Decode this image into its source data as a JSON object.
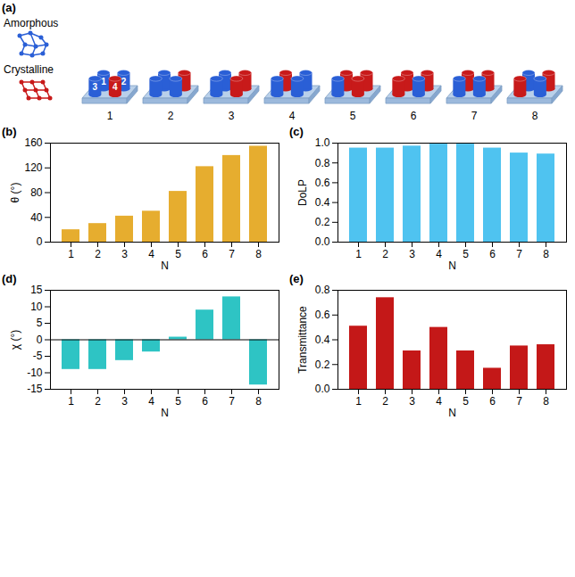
{
  "diagram": {
    "title": "(a)",
    "legend": [
      {
        "label": "Amorphous",
        "color": "#2a5fd6"
      },
      {
        "label": "Crystalline",
        "color": "#c81a1a"
      }
    ],
    "units": [
      {
        "label": "1",
        "crystalline": [
          4
        ],
        "pillar_labels": [
          "1",
          "2",
          "3",
          "4"
        ]
      },
      {
        "label": "2",
        "crystalline": [
          2
        ]
      },
      {
        "label": "3",
        "crystalline": [
          2,
          4
        ]
      },
      {
        "label": "4",
        "crystalline": [
          1
        ]
      },
      {
        "label": "5",
        "crystalline": [
          1,
          2,
          4
        ]
      },
      {
        "label": "6",
        "crystalline": [
          1,
          2,
          3
        ]
      },
      {
        "label": "7",
        "crystalline": [
          1,
          2
        ]
      },
      {
        "label": "8",
        "crystalline": [
          2,
          3
        ]
      }
    ]
  },
  "chart_data": [
    {
      "type": "bar",
      "title": "(b)",
      "categories": [
        1,
        2,
        3,
        4,
        5,
        6,
        7,
        8
      ],
      "values": [
        20,
        30,
        42,
        50,
        82,
        122,
        140,
        155
      ],
      "color": "#e6ad2f",
      "xlabel": "N",
      "ylabel": "θ (°)",
      "ylim": [
        0,
        160
      ],
      "yticks": [
        0,
        40,
        80,
        120,
        160
      ]
    },
    {
      "type": "bar",
      "title": "(c)",
      "categories": [
        1,
        2,
        3,
        4,
        5,
        6,
        7,
        8
      ],
      "values": [
        0.95,
        0.95,
        0.97,
        0.99,
        0.99,
        0.95,
        0.9,
        0.89
      ],
      "color": "#4fc3f0",
      "xlabel": "N",
      "ylabel": "DoLP",
      "ylim": [
        0,
        1
      ],
      "yticks": [
        {
          "value": 0,
          "label": "0.0"
        },
        {
          "value": 0.2,
          "label": "0.2"
        },
        {
          "value": 0.4,
          "label": "0.4"
        },
        {
          "value": 0.6,
          "label": "0.6"
        },
        {
          "value": 0.8,
          "label": "0.8"
        },
        {
          "value": 1,
          "label": "1.0"
        }
      ]
    },
    {
      "type": "bar",
      "title": "(d)",
      "categories": [
        1,
        2,
        3,
        4,
        5,
        6,
        7,
        8
      ],
      "values": [
        -9,
        -9,
        -6.3,
        -3.7,
        0.8,
        9,
        13,
        -13.7
      ],
      "color": "#2ec4c4",
      "xlabel": "N",
      "ylabel": "χ (°)",
      "ylim": [
        -15,
        15
      ],
      "yticks": [
        -15,
        -10,
        -5,
        0,
        5,
        10,
        15
      ]
    },
    {
      "type": "bar",
      "title": "(e)",
      "categories": [
        1,
        2,
        3,
        4,
        5,
        6,
        7,
        8
      ],
      "values": [
        0.51,
        0.74,
        0.31,
        0.5,
        0.31,
        0.17,
        0.35,
        0.36
      ],
      "color": "#c41818",
      "xlabel": "N",
      "ylabel": "Transmittance",
      "ylim": [
        0,
        0.8
      ],
      "yticks": [
        {
          "value": 0,
          "label": "0.0"
        },
        {
          "value": 0.2,
          "label": "0.2"
        },
        {
          "value": 0.4,
          "label": "0.4"
        },
        {
          "value": 0.6,
          "label": "0.6"
        },
        {
          "value": 0.8,
          "label": "0.8"
        }
      ]
    }
  ]
}
